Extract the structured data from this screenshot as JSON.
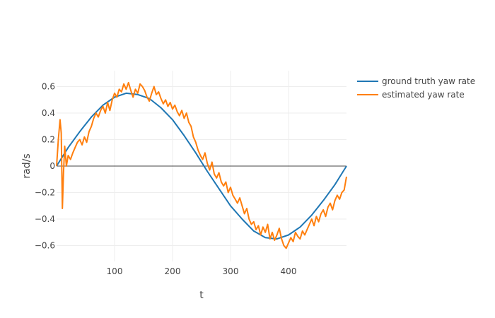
{
  "chart_data": {
    "type": "line",
    "title": "",
    "xlabel": "t",
    "ylabel": "rad/s",
    "xlim": [
      0,
      500
    ],
    "ylim": [
      -0.72,
      0.72
    ],
    "x_ticks": [
      100,
      200,
      300,
      400
    ],
    "y_ticks": [
      0.6,
      0.4,
      0.2,
      0,
      -0.2,
      -0.4,
      -0.6
    ],
    "y_tick_labels": [
      "0.6",
      "0.4",
      "0.2",
      "0",
      "−0.2",
      "−0.4",
      "−0.6"
    ],
    "grid": true,
    "zero_line": true,
    "legend": {
      "placement": "top-right"
    },
    "series": [
      {
        "name": "ground truth yaw rate",
        "color": "#1f77b4",
        "x": [
          0,
          20,
          40,
          60,
          80,
          100,
          120,
          140,
          160,
          180,
          200,
          220,
          240,
          260,
          280,
          300,
          320,
          340,
          360,
          380,
          400,
          420,
          440,
          460,
          480,
          500
        ],
        "y": [
          0.0,
          0.14,
          0.26,
          0.37,
          0.46,
          0.52,
          0.55,
          0.54,
          0.51,
          0.44,
          0.35,
          0.23,
          0.1,
          -0.04,
          -0.17,
          -0.3,
          -0.4,
          -0.49,
          -0.54,
          -0.55,
          -0.52,
          -0.46,
          -0.37,
          -0.26,
          -0.14,
          0.0
        ]
      },
      {
        "name": "estimated yaw rate",
        "color": "#ff7f0e",
        "x": [
          0,
          3,
          6,
          8,
          10,
          12,
          14,
          17,
          20,
          24,
          28,
          32,
          36,
          40,
          44,
          48,
          52,
          56,
          60,
          64,
          68,
          72,
          76,
          80,
          84,
          88,
          92,
          96,
          100,
          104,
          108,
          112,
          116,
          120,
          124,
          128,
          132,
          136,
          140,
          144,
          148,
          152,
          156,
          160,
          164,
          168,
          172,
          176,
          180,
          184,
          188,
          192,
          196,
          200,
          204,
          208,
          212,
          216,
          220,
          224,
          228,
          232,
          236,
          240,
          244,
          248,
          252,
          256,
          260,
          264,
          268,
          272,
          276,
          280,
          284,
          288,
          292,
          296,
          300,
          304,
          308,
          312,
          316,
          320,
          324,
          328,
          332,
          336,
          340,
          344,
          348,
          352,
          356,
          360,
          364,
          368,
          372,
          376,
          380,
          384,
          388,
          392,
          396,
          400,
          404,
          408,
          412,
          416,
          420,
          424,
          428,
          432,
          436,
          440,
          444,
          448,
          452,
          456,
          460,
          464,
          468,
          472,
          476,
          480,
          484,
          488,
          492,
          496,
          500
        ],
        "y": [
          0.0,
          0.2,
          0.35,
          0.25,
          -0.32,
          -0.05,
          0.15,
          0.0,
          0.08,
          0.05,
          0.1,
          0.14,
          0.18,
          0.2,
          0.16,
          0.22,
          0.18,
          0.26,
          0.3,
          0.36,
          0.4,
          0.37,
          0.42,
          0.45,
          0.4,
          0.48,
          0.42,
          0.5,
          0.55,
          0.52,
          0.58,
          0.56,
          0.62,
          0.58,
          0.63,
          0.57,
          0.52,
          0.58,
          0.55,
          0.62,
          0.6,
          0.57,
          0.52,
          0.49,
          0.55,
          0.6,
          0.54,
          0.56,
          0.51,
          0.47,
          0.5,
          0.45,
          0.48,
          0.43,
          0.46,
          0.41,
          0.38,
          0.42,
          0.36,
          0.4,
          0.33,
          0.3,
          0.22,
          0.18,
          0.12,
          0.08,
          0.05,
          0.1,
          0.02,
          -0.03,
          0.03,
          -0.06,
          -0.09,
          -0.05,
          -0.12,
          -0.15,
          -0.12,
          -0.2,
          -0.16,
          -0.22,
          -0.25,
          -0.28,
          -0.24,
          -0.3,
          -0.36,
          -0.32,
          -0.4,
          -0.44,
          -0.42,
          -0.48,
          -0.45,
          -0.52,
          -0.46,
          -0.5,
          -0.44,
          -0.55,
          -0.5,
          -0.56,
          -0.52,
          -0.47,
          -0.55,
          -0.6,
          -0.62,
          -0.58,
          -0.54,
          -0.57,
          -0.5,
          -0.53,
          -0.55,
          -0.49,
          -0.52,
          -0.48,
          -0.44,
          -0.4,
          -0.45,
          -0.38,
          -0.42,
          -0.36,
          -0.33,
          -0.38,
          -0.31,
          -0.28,
          -0.33,
          -0.26,
          -0.22,
          -0.25,
          -0.2,
          -0.18,
          -0.08
        ]
      }
    ]
  }
}
